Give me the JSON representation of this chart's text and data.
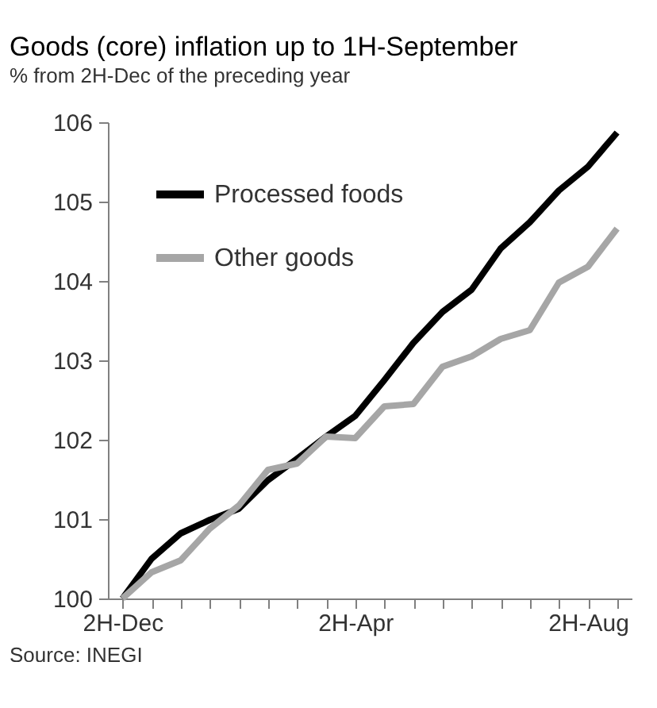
{
  "chart_data": {
    "type": "line",
    "title": "Goods (core) inflation up to 1H-September",
    "subtitle": "% from 2H-Dec of the preceding year",
    "categories": [
      "2H-Dec",
      null,
      null,
      null,
      null,
      null,
      null,
      null,
      "2H-Apr",
      null,
      null,
      null,
      null,
      null,
      null,
      null,
      "2H-Aug",
      null
    ],
    "series": [
      {
        "name": "Processed foods",
        "color": "#000000",
        "values": [
          100,
          100.5,
          100.82,
          100.99,
          101.13,
          101.49,
          101.76,
          102.04,
          102.3,
          102.75,
          103.22,
          103.61,
          103.89,
          104.41,
          104.74,
          105.14,
          105.44,
          105.87
        ]
      },
      {
        "name": "Other goods",
        "color": "#a6a6a6",
        "values": [
          100,
          100.33,
          100.48,
          100.88,
          101.17,
          101.62,
          101.7,
          102.04,
          102.02,
          102.42,
          102.45,
          102.92,
          103.05,
          103.27,
          103.38,
          103.98,
          104.18,
          104.66
        ]
      }
    ],
    "ylim": [
      100,
      106
    ],
    "yticks": [
      100,
      101,
      102,
      103,
      104,
      105,
      106
    ],
    "grid": false,
    "legend": "top left",
    "marker": "none",
    "line_style": "solid",
    "annotations": [
      "Source: INEGI"
    ]
  }
}
